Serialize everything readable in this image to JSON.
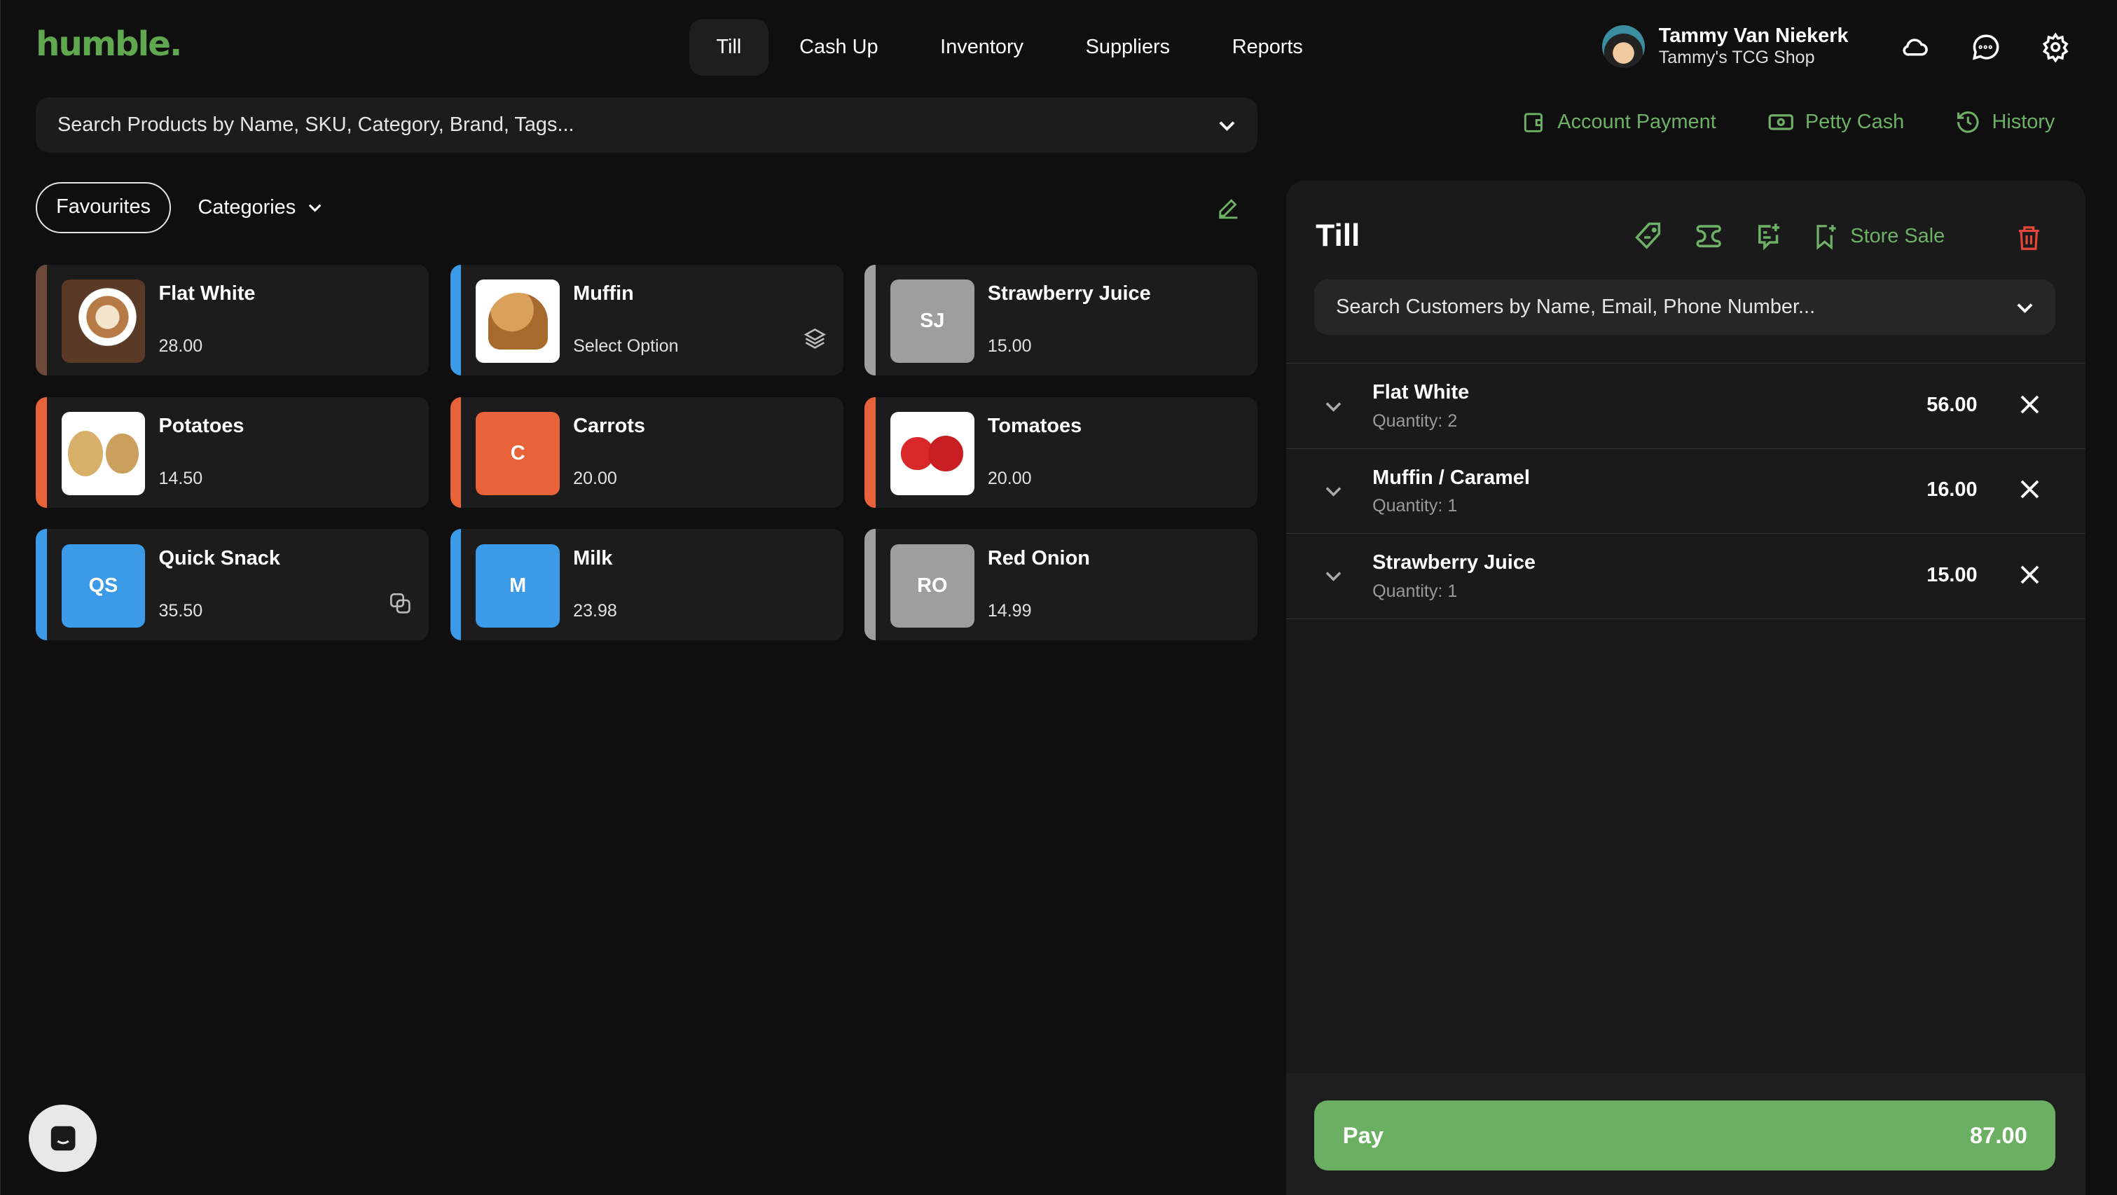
{
  "header": {
    "logo": "humble.",
    "nav": [
      "Till",
      "Cash Up",
      "Inventory",
      "Suppliers",
      "Reports"
    ],
    "active_nav": "Till",
    "user_name": "Tammy Van Niekerk",
    "shop_name": "Tammy's TCG Shop"
  },
  "search": {
    "placeholder": "Search Products by Name, SKU, Category, Brand, Tags..."
  },
  "actions": {
    "account_payment": "Account Payment",
    "petty_cash": "Petty Cash",
    "history": "History"
  },
  "tabs": {
    "favourites": "Favourites",
    "categories": "Categories"
  },
  "products": [
    {
      "name": "Flat White",
      "sub": "28.00",
      "thumb": "photo",
      "stripe": "#6b4a3a"
    },
    {
      "name": "Muffin",
      "sub": "Select Option",
      "thumb": "photo",
      "stripe": "#3b9be8",
      "icon": "layers-icon"
    },
    {
      "name": "Strawberry Juice",
      "sub": "15.00",
      "thumb": "SJ",
      "color": "#9e9e9e",
      "stripe": "#9e9e9e"
    },
    {
      "name": "Potatoes",
      "sub": "14.50",
      "thumb": "photo",
      "stripe": "#e8623a"
    },
    {
      "name": "Carrots",
      "sub": "20.00",
      "thumb": "C",
      "color": "#e8623a",
      "stripe": "#e8623a"
    },
    {
      "name": "Tomatoes",
      "sub": "20.00",
      "thumb": "photo",
      "stripe": "#e8623a"
    },
    {
      "name": "Quick Snack",
      "sub": "35.50",
      "thumb": "QS",
      "color": "#3b9be8",
      "stripe": "#3b9be8",
      "icon": "combo-icon"
    },
    {
      "name": "Milk",
      "sub": "23.98",
      "thumb": "M",
      "color": "#3b9be8",
      "stripe": "#3b9be8"
    },
    {
      "name": "Red Onion",
      "sub": "14.99",
      "thumb": "RO",
      "color": "#9e9e9e",
      "stripe": "#9e9e9e"
    }
  ],
  "till": {
    "title": "Till",
    "store_sale": "Store Sale",
    "customer_placeholder": "Search Customers by Name, Email, Phone Number...",
    "items": [
      {
        "name": "Flat White",
        "qty": "Quantity: 2",
        "price": "56.00"
      },
      {
        "name": "Muffin / Caramel",
        "qty": "Quantity: 1",
        "price": "16.00"
      },
      {
        "name": "Strawberry Juice",
        "qty": "Quantity: 1",
        "price": "15.00"
      }
    ],
    "pay_label": "Pay",
    "total": "87.00"
  },
  "colors": {
    "accent": "#6db066",
    "pay": "#6aaf62",
    "danger": "#e5483b",
    "background": "#0f0f0f",
    "card": "#1c1c1c"
  }
}
